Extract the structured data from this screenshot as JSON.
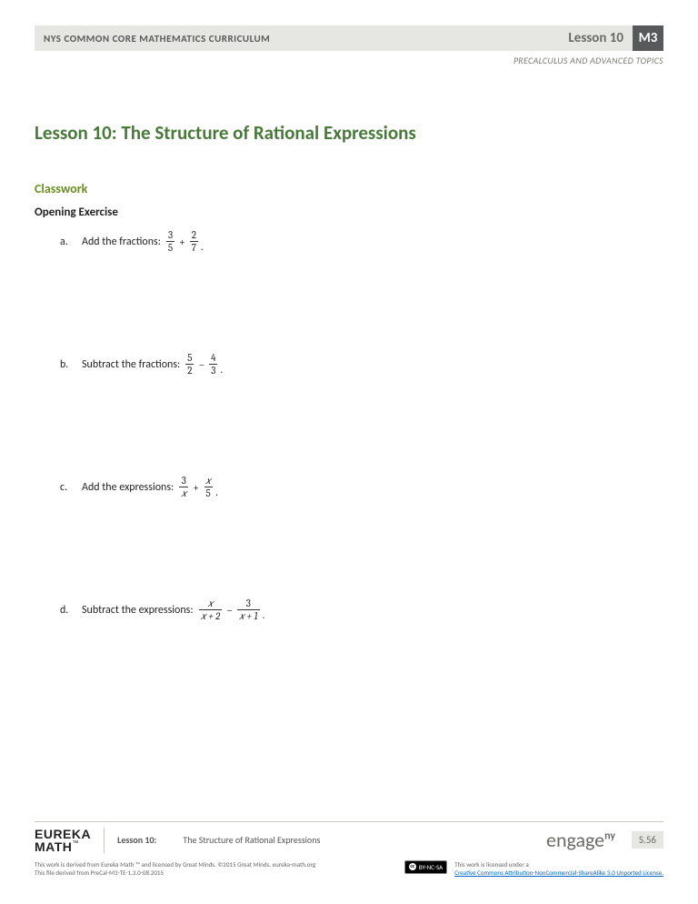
{
  "header": {
    "curriculum": "NYS COMMON CORE MATHEMATICS CURRICULUM",
    "lesson_label": "Lesson 10",
    "module_badge": "M3",
    "course": "PRECALCULUS AND ADVANCED TOPICS"
  },
  "title": "Lesson 10:  The Structure of Rational Expressions",
  "sections": {
    "classwork": "Classwork",
    "opening": "Opening Exercise"
  },
  "exercises": {
    "a": {
      "label": "a.",
      "text": "Add the fractions:",
      "f1n": "3",
      "f1d": "5",
      "op": "+",
      "f2n": "2",
      "f2d": "7"
    },
    "b": {
      "label": "b.",
      "text": "Subtract the fractions:",
      "f1n": "5",
      "f1d": "2",
      "op": "−",
      "f2n": "4",
      "f2d": "3"
    },
    "c": {
      "label": "c.",
      "text": "Add the expressions:",
      "f1n": "3",
      "f1d": "𝑥",
      "op": "+",
      "f2n": "𝑥",
      "f2d": "5"
    },
    "d": {
      "label": "d.",
      "text": "Subtract the expressions:",
      "f1n": "𝑥",
      "f1d": "𝑥 + 2",
      "op": "−",
      "f2n": "3",
      "f2d": "𝑥 + 1"
    }
  },
  "footer": {
    "brand_line1": "EUREKA",
    "brand_line2": "MATH",
    "tm": "™",
    "lesson_label": "Lesson 10:",
    "lesson_title": "The Structure of Rational Expressions",
    "engage_pre": "engage",
    "engage_sup": "ny",
    "page_num": "S.56",
    "attr_left_1": "This work is derived from Eureka Math ™ and licensed by Great Minds. ©2015 Great Minds. eureka-math.org",
    "attr_left_2": "This file derived from PreCal-M3-TE-1.3.0-08.2015",
    "cc_badge": "BY-NC-SA",
    "attr_right_1": "This work is licensed under a",
    "attr_right_link": "Creative Commons Attribution-NonCommercial-ShareAlike 3.0 Unported License."
  },
  "colors": {
    "header_bg": "#e6e7e2",
    "module_bg": "#58595b",
    "title_color": "#4a7a3a",
    "classwork_color": "#6b8e23",
    "link_color": "#0066cc"
  }
}
